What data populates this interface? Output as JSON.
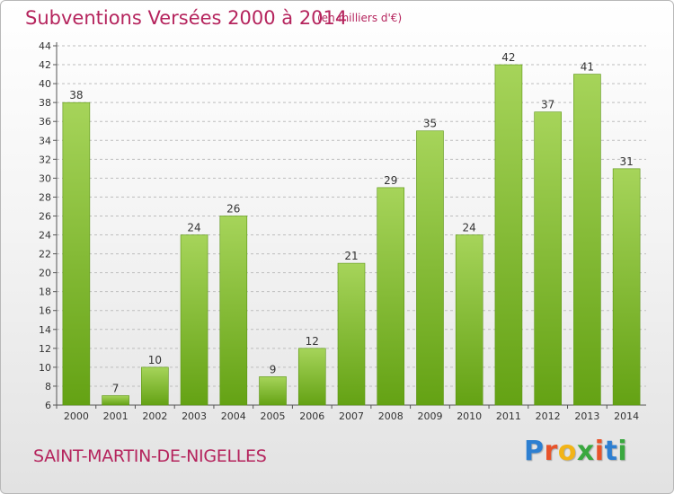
{
  "header": {
    "title": "Subventions Versées 2000 à 2014",
    "subtitle": "(en milliers d'€)"
  },
  "footer": {
    "commune": "SAINT-MARTIN-DE-NIGELLES",
    "logo_text": "Proxiti",
    "logo_colors": [
      "#2d7fd1",
      "#e8532a",
      "#f2b417",
      "#3aa83f",
      "#e8532a",
      "#2d7fd1",
      "#3aa83f"
    ]
  },
  "colors": {
    "bar_light": "#a6d45a",
    "bar_dark": "#64a214",
    "grid": "#bdbdbd"
  },
  "chart_data": {
    "type": "bar",
    "title": "Subventions Versées 2000 à 2014",
    "subtitle": "(en milliers d'€)",
    "xlabel": "",
    "ylabel": "",
    "categories": [
      "2000",
      "2001",
      "2002",
      "2003",
      "2004",
      "2005",
      "2006",
      "2007",
      "2008",
      "2009",
      "2010",
      "2011",
      "2012",
      "2013",
      "2014"
    ],
    "values": [
      38,
      7,
      10,
      24,
      26,
      9,
      12,
      21,
      29,
      35,
      24,
      42,
      37,
      41,
      31
    ],
    "ylim": [
      6,
      44
    ],
    "ytick_step": 2,
    "grid": true,
    "data_labels": true
  }
}
